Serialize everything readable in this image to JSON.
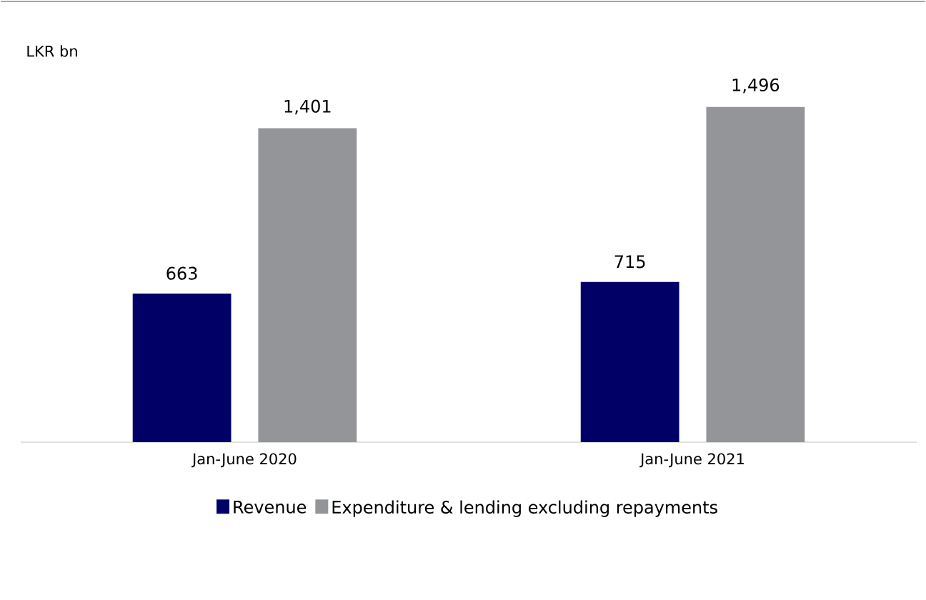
{
  "chart_data": {
    "type": "bar",
    "annotations": [
      "LKR bn"
    ],
    "categories": [
      "Jan-June 2020",
      "Jan-June 2021"
    ],
    "series": [
      {
        "name": "Revenue",
        "color": "#000066",
        "values": [
          663,
          715
        ],
        "value_labels": [
          "663",
          "715"
        ]
      },
      {
        "name": "Expenditure & lending excluding repayments",
        "color": "#939598",
        "values": [
          1401,
          1496
        ],
        "value_labels": [
          "1,401",
          "1,496"
        ]
      }
    ],
    "legend": "bottom"
  }
}
